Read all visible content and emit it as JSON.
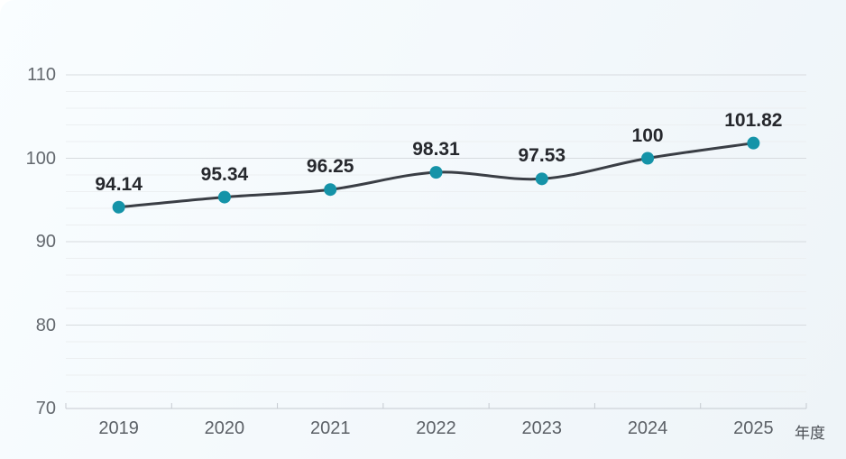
{
  "chart_data": {
    "type": "line",
    "title": "",
    "categories": [
      "2019",
      "2020",
      "2021",
      "2022",
      "2023",
      "2024",
      "2025"
    ],
    "series": [
      {
        "name": "index",
        "values": [
          94.14,
          95.34,
          96.25,
          98.31,
          97.53,
          100,
          101.82
        ]
      }
    ],
    "point_labels": [
      "94.14",
      "95.34",
      "96.25",
      "98.31",
      "97.53",
      "100",
      "101.82"
    ],
    "xlabel": "年度",
    "ylabel": "",
    "ylim": [
      70,
      110
    ],
    "y_major_ticks": [
      70,
      80,
      90,
      100,
      110
    ],
    "y_minor_interval": 2,
    "grid": "on",
    "smooth": true,
    "legend_position": "none",
    "colors": {
      "point": "#1593a8",
      "line": "#3a3e45",
      "value_label": "#26282d",
      "y_axis_label": "#63686e",
      "x_axis_label": "#5c6167",
      "x_axis_title": "#4a4e54",
      "grid_major": "#d7dbdf",
      "grid_minor": "#ecefF1",
      "axis_line": "#c5cad0",
      "background_start": "#f9fdff",
      "background_end": "#eef4f8"
    }
  }
}
